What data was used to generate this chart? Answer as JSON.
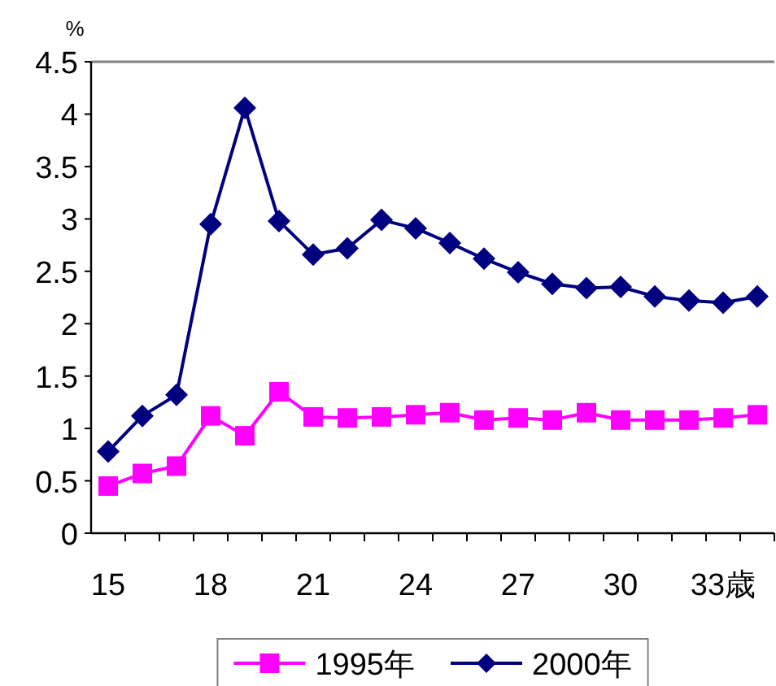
{
  "chart_data": {
    "type": "line",
    "ylabel": "%",
    "categories": [
      "15",
      null,
      null,
      "18",
      null,
      null,
      "21",
      null,
      null,
      "24",
      null,
      null,
      "27",
      null,
      null,
      "30",
      null,
      null,
      "33歳",
      null
    ],
    "series": [
      {
        "name": "1995年",
        "color": "#ff00ff",
        "marker": "square",
        "values": [
          0.45,
          0.57,
          0.64,
          1.12,
          0.93,
          1.35,
          1.11,
          1.1,
          1.11,
          1.13,
          1.15,
          1.08,
          1.1,
          1.08,
          1.15,
          1.08,
          1.08,
          1.08,
          1.1,
          1.13
        ]
      },
      {
        "name": "2000年",
        "color": "#000080",
        "marker": "diamond",
        "values": [
          0.78,
          1.12,
          1.32,
          2.95,
          4.06,
          2.98,
          2.66,
          2.72,
          2.99,
          2.91,
          2.77,
          2.62,
          2.49,
          2.38,
          2.34,
          2.35,
          2.26,
          2.22,
          2.2,
          2.26
        ]
      }
    ],
    "ylim": [
      0,
      4.5
    ],
    "yticks": [
      0,
      0.5,
      1,
      1.5,
      2,
      2.5,
      3,
      3.5,
      4,
      4.5
    ],
    "grid": false,
    "legend": "bottom"
  }
}
